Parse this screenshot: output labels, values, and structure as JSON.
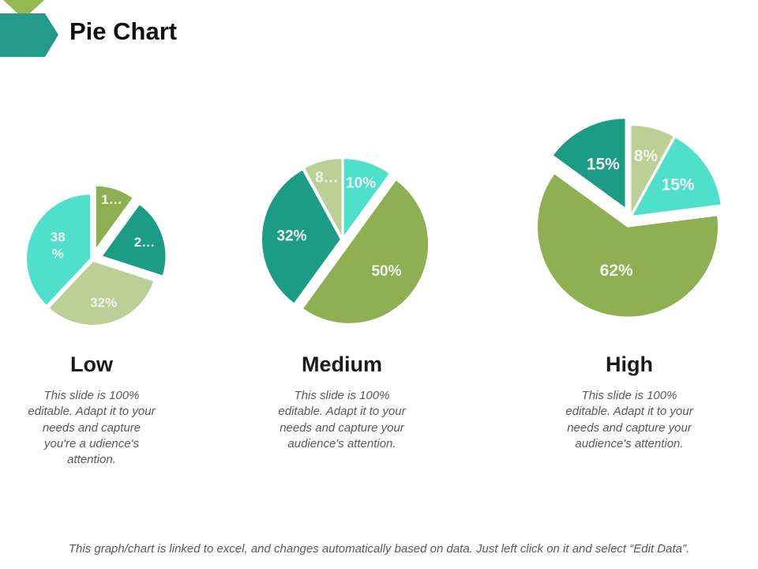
{
  "slide": {
    "title": "Pie Chart",
    "footer": "This graph/chart is linked to excel, and changes automatically based on data. Just left click on it and select “Edit Data”."
  },
  "palette": {
    "teal": "#1d9c85",
    "olive": "#8fb052",
    "sage": "#bcd096",
    "mint": "#4fe0cc",
    "accent_arrow": "#269a8a",
    "accent_chevron": "#94b94f",
    "slice_label": "#f2f2f0",
    "heading_text": "#1a1a1a",
    "body_text": "#595959"
  },
  "chart_data": [
    {
      "type": "pie",
      "title": "Low",
      "description": "This slide is 100% editable. Adapt it to your needs and capture you're a udience's attention.",
      "start_angle_deg": 0,
      "direction": "clockwise",
      "slices": [
        {
          "label": "1…",
          "value": 10,
          "color": "olive",
          "exploded": true
        },
        {
          "label": "2…",
          "value": 20,
          "color": "teal",
          "exploded": true
        },
        {
          "label": "32%",
          "value": 32,
          "color": "sage",
          "exploded": false
        },
        {
          "label": "38\n%",
          "value": 38,
          "color": "mint",
          "exploded": false
        }
      ]
    },
    {
      "type": "pie",
      "title": "Medium",
      "description": "This slide is 100% editable. Adapt it to your needs and capture your audience's attention.",
      "start_angle_deg": 0,
      "direction": "clockwise",
      "slices": [
        {
          "label": "10%",
          "value": 10,
          "color": "mint",
          "exploded": false
        },
        {
          "label": "50%",
          "value": 50,
          "color": "olive",
          "exploded": true
        },
        {
          "label": "32%",
          "value": 32,
          "color": "teal",
          "exploded": false
        },
        {
          "label": "8…",
          "value": 8,
          "color": "sage",
          "exploded": false
        }
      ]
    },
    {
      "type": "pie",
      "title": "High",
      "description": "This slide is 100% editable. Adapt it to your needs and capture your audience's attention.",
      "start_angle_deg": 0,
      "direction": "clockwise",
      "slices": [
        {
          "label": "8%",
          "value": 8,
          "color": "sage",
          "exploded": false
        },
        {
          "label": "15%",
          "value": 15,
          "color": "mint",
          "exploded": false
        },
        {
          "label": "62%",
          "value": 62,
          "color": "olive",
          "exploded": true
        },
        {
          "label": "15%",
          "value": 15,
          "color": "teal",
          "exploded": true
        }
      ]
    }
  ]
}
